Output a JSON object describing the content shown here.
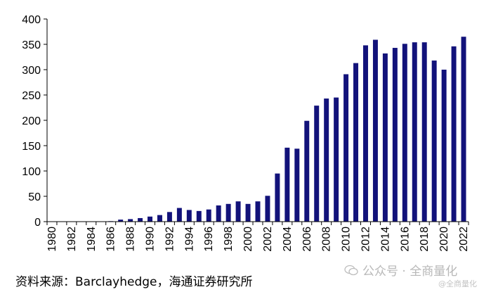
{
  "chart_data": {
    "type": "bar",
    "categories": [
      "1980",
      "1981",
      "1982",
      "1983",
      "1984",
      "1985",
      "1986",
      "1987",
      "1988",
      "1989",
      "1990",
      "1991",
      "1992",
      "1993",
      "1994",
      "1995",
      "1996",
      "1997",
      "1998",
      "1999",
      "2000",
      "2001",
      "2002",
      "2003",
      "2004",
      "2005",
      "2006",
      "2007",
      "2008",
      "2009",
      "2010",
      "2011",
      "2012",
      "2013",
      "2014",
      "2015",
      "2016",
      "2017",
      "2018",
      "2019",
      "2020",
      "2021",
      "2022"
    ],
    "x_tick_labels": [
      "1980",
      "1982",
      "1984",
      "1986",
      "1988",
      "1990",
      "1992",
      "1994",
      "1996",
      "1998",
      "2000",
      "2002",
      "2004",
      "2006",
      "2008",
      "2010",
      "2012",
      "2014",
      "2016",
      "2018",
      "2020",
      "2022"
    ],
    "values": [
      0.5,
      0.5,
      0.5,
      0.5,
      0.5,
      0.5,
      1,
      4,
      5,
      7,
      10,
      13,
      19,
      27,
      23,
      21,
      24,
      32,
      35,
      40,
      35,
      40,
      51,
      95,
      146,
      144,
      199,
      229,
      243,
      245,
      291,
      313,
      348,
      359,
      332,
      343,
      351,
      354,
      354,
      318,
      300,
      346,
      365
    ],
    "ylim": [
      0,
      400
    ],
    "yticks": [
      0,
      50,
      100,
      150,
      200,
      250,
      300,
      350,
      400
    ],
    "bar_color": "#12127a",
    "grid": false,
    "title": "",
    "xlabel": "",
    "ylabel": ""
  },
  "footer": {
    "source": "资料来源：Barclayhedge，海通证券研究所"
  },
  "watermark": {
    "text": "公众号 · 全商量化",
    "icon": "wechat-icon",
    "sub_text": "@全商量化"
  }
}
